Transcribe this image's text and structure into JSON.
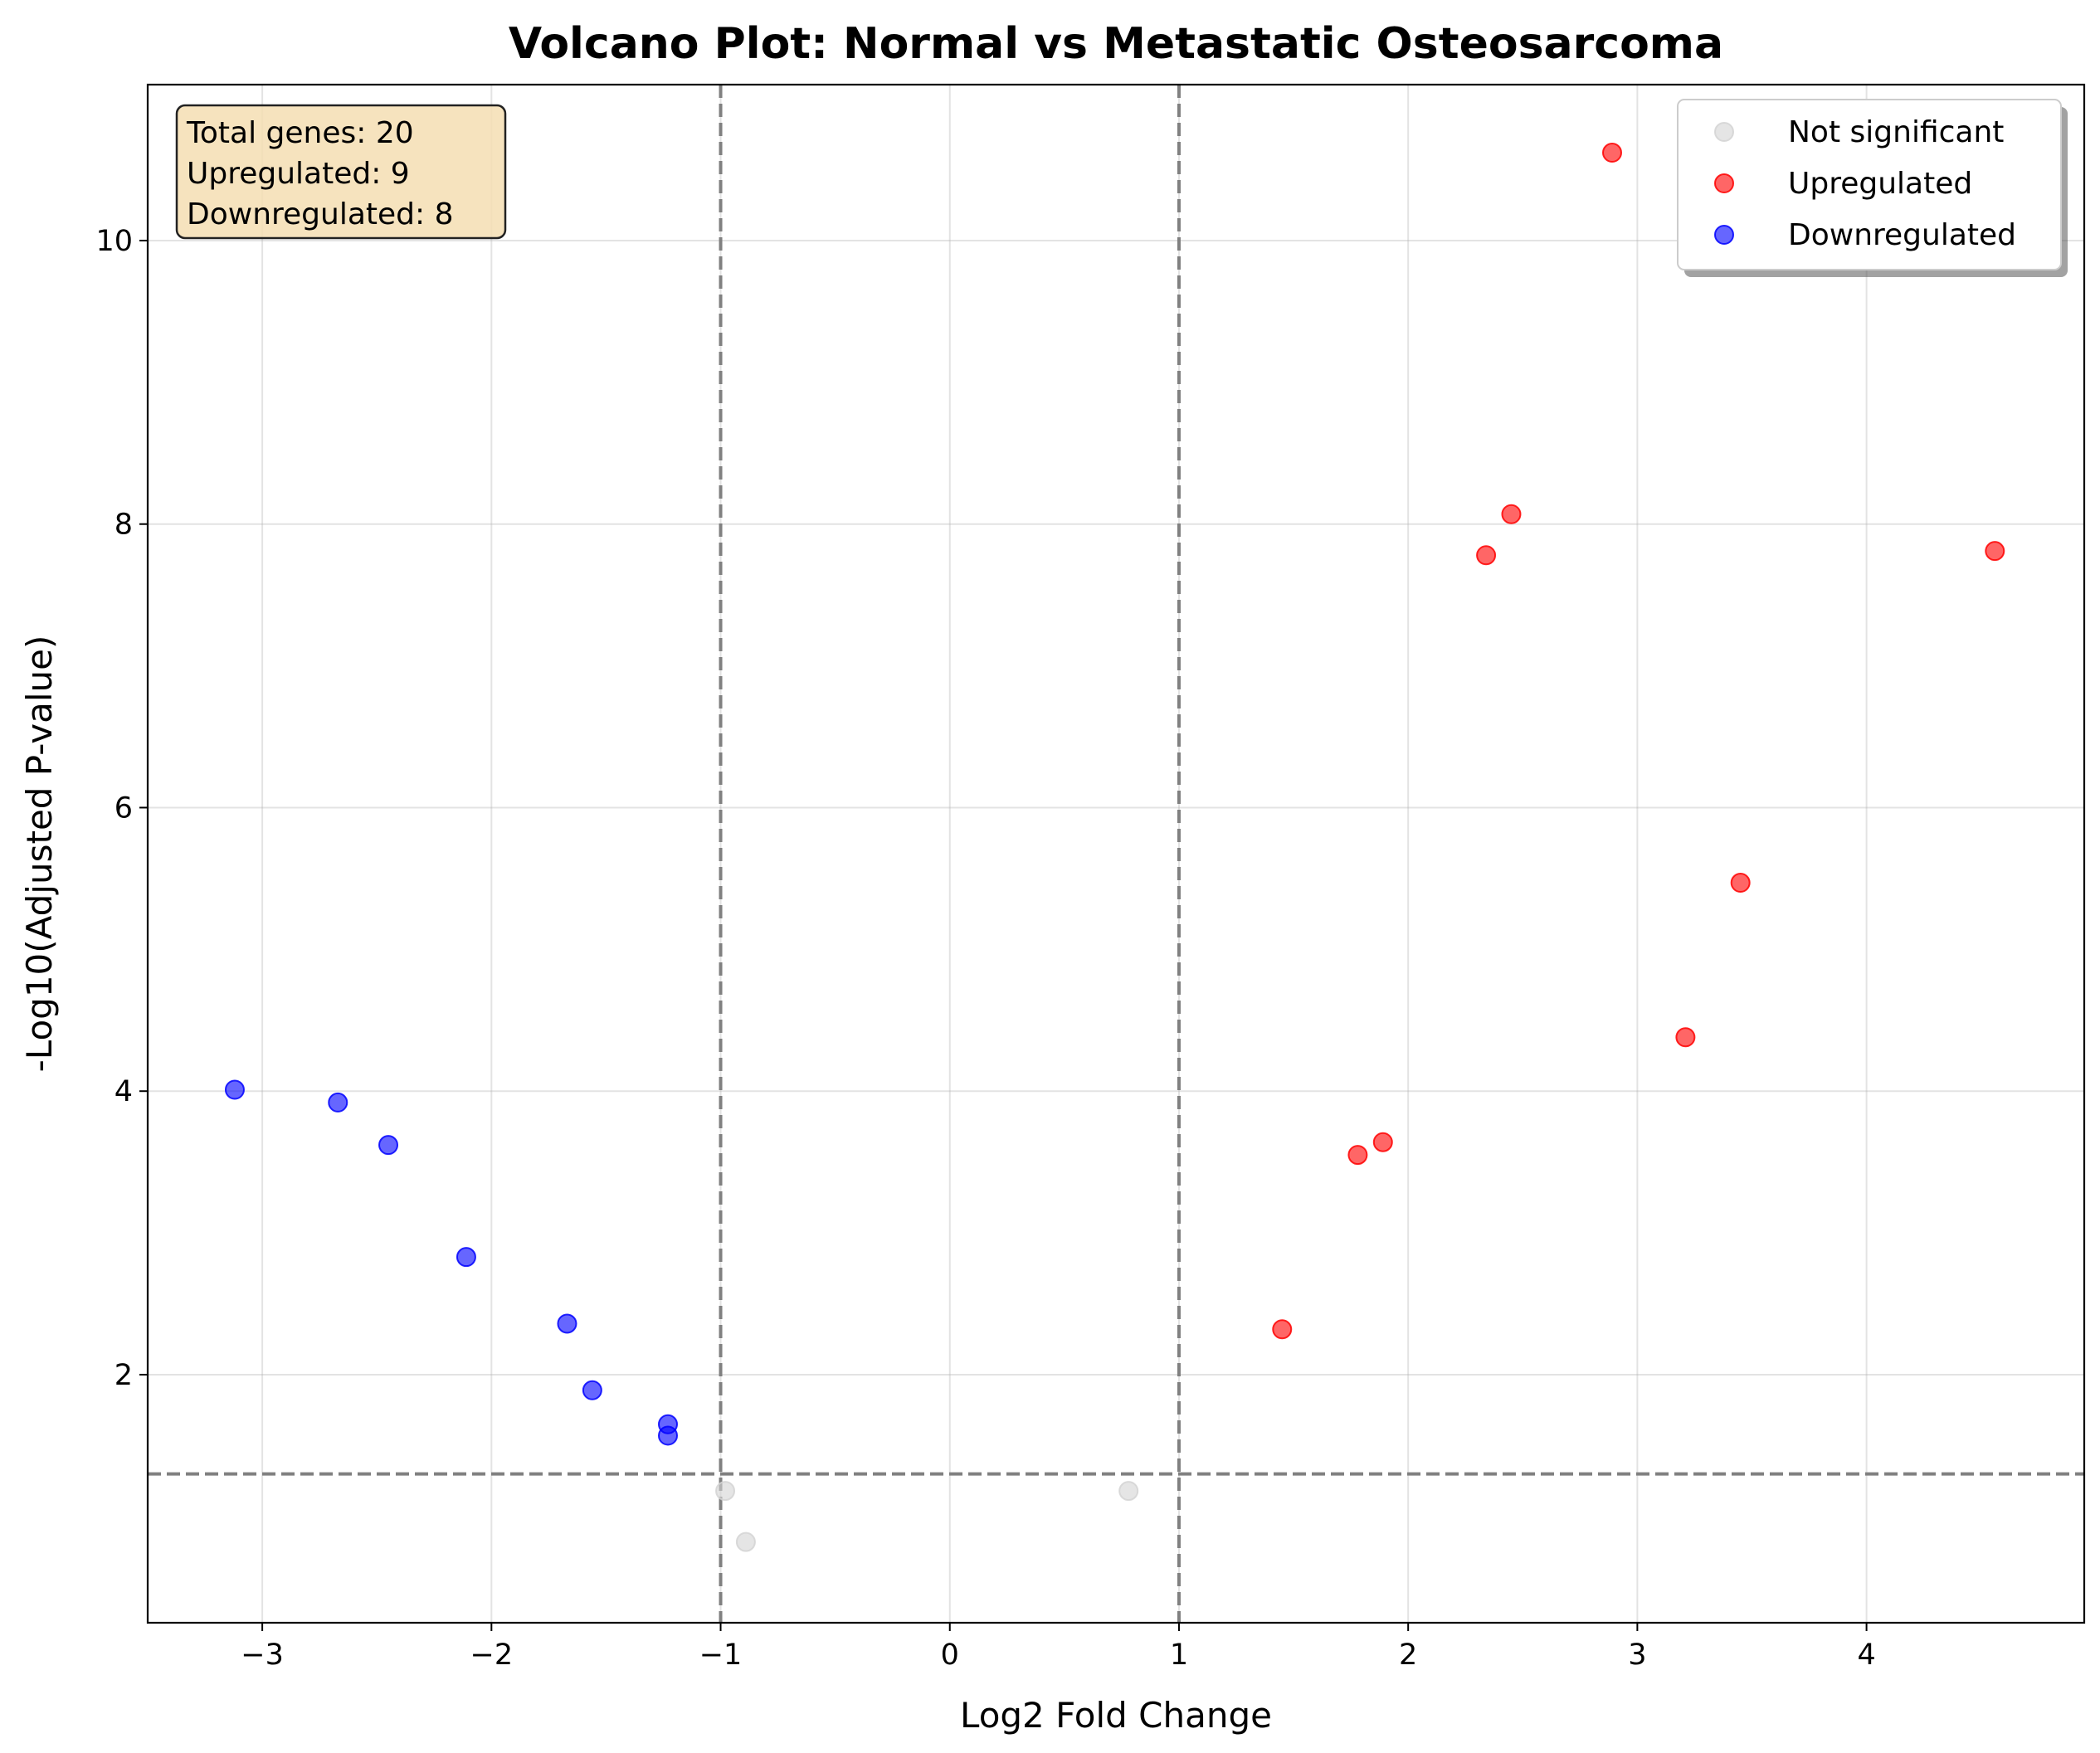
{
  "chart_data": {
    "type": "scatter",
    "title": "Volcano Plot: Normal vs Metastatic Osteosarcoma",
    "xlabel": "Log2 Fold Change",
    "ylabel": "-Log10(Adjusted P-value)",
    "xlim": [
      -3.5,
      4.95
    ],
    "ylim": [
      0.25,
      11.1
    ],
    "xticks": [
      -3,
      -2,
      -1,
      0,
      1,
      2,
      3,
      4
    ],
    "xtick_labels": [
      "−3",
      "−2",
      "−1",
      "0",
      "1",
      "2",
      "3",
      "4"
    ],
    "yticks": [
      2,
      4,
      6,
      8,
      10
    ],
    "ytick_labels": [
      "2",
      "4",
      "6",
      "8",
      "10"
    ],
    "grid": true,
    "legend_position": "top-right",
    "thresholds": {
      "log2fc": [
        -1,
        1
      ],
      "neg_log10_p": 1.3
    },
    "annotation_lines": [
      "Total genes: 20",
      "Upregulated: 9",
      "Downregulated: 8"
    ],
    "series": [
      {
        "name": "Not significant",
        "color": "#d3d3d3",
        "points": [
          {
            "x": -0.98,
            "y": 1.18
          },
          {
            "x": -0.89,
            "y": 0.82
          },
          {
            "x": 0.78,
            "y": 1.18
          }
        ]
      },
      {
        "name": "Upregulated",
        "color": "#ff0000",
        "points": [
          {
            "x": 1.45,
            "y": 2.32
          },
          {
            "x": 1.78,
            "y": 3.55
          },
          {
            "x": 1.89,
            "y": 3.64
          },
          {
            "x": 2.34,
            "y": 7.78
          },
          {
            "x": 2.45,
            "y": 8.07
          },
          {
            "x": 2.89,
            "y": 10.62
          },
          {
            "x": 3.21,
            "y": 4.38
          },
          {
            "x": 3.45,
            "y": 5.47
          },
          {
            "x": 4.56,
            "y": 7.81
          }
        ]
      },
      {
        "name": "Downregulated",
        "color": "#0000ff",
        "points": [
          {
            "x": -3.12,
            "y": 4.01
          },
          {
            "x": -2.67,
            "y": 3.92
          },
          {
            "x": -2.45,
            "y": 3.62
          },
          {
            "x": -2.11,
            "y": 2.83
          },
          {
            "x": -1.67,
            "y": 2.36
          },
          {
            "x": -1.56,
            "y": 1.89
          },
          {
            "x": -1.23,
            "y": 1.65
          },
          {
            "x": -1.23,
            "y": 1.57
          }
        ]
      }
    ]
  }
}
